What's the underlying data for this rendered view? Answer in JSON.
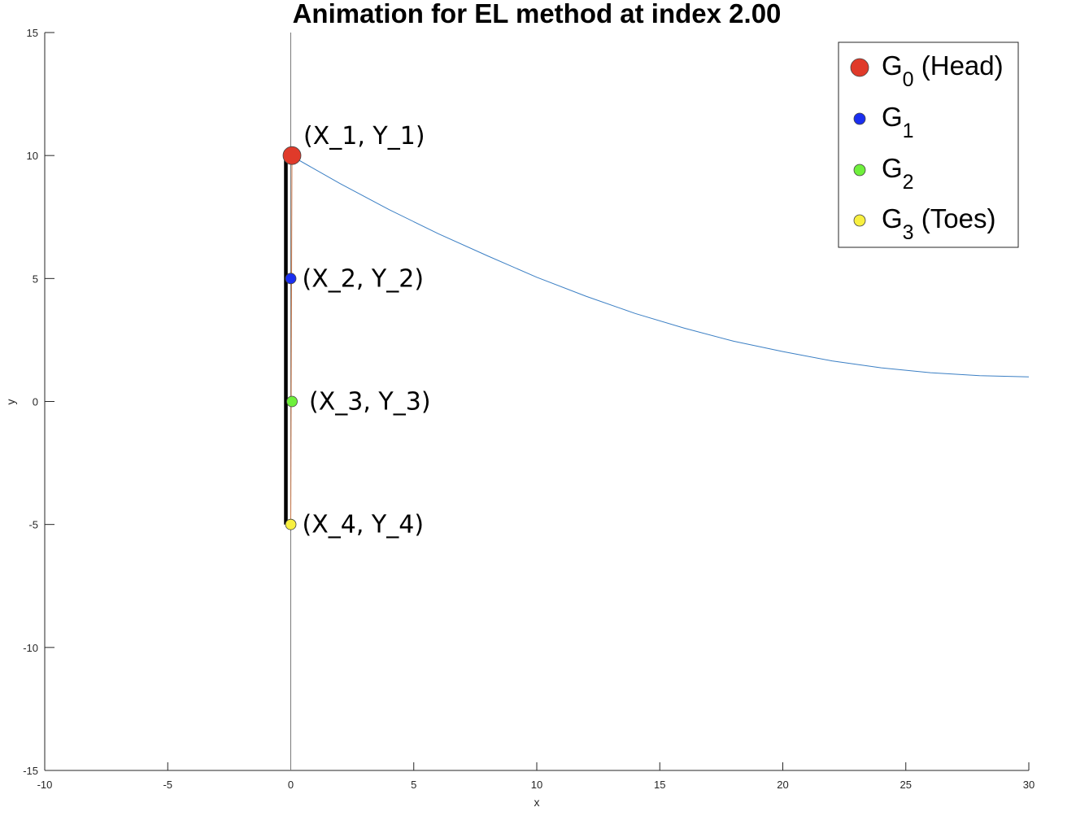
{
  "chart_data": {
    "type": "line",
    "title": "Animation for EL method at index 2.00",
    "xlabel": "x",
    "ylabel": "y",
    "xlim": [
      -10,
      30
    ],
    "ylim": [
      -15,
      15
    ],
    "xticks": [
      -10,
      -5,
      0,
      5,
      10,
      15,
      20,
      25,
      30
    ],
    "yticks": [
      -15,
      -10,
      -5,
      0,
      5,
      10,
      15
    ],
    "vertical_reference_line_x": 0,
    "trajectory": {
      "color": "#3b7fc4",
      "x": [
        0,
        2,
        4,
        6,
        8,
        10,
        12,
        14,
        16,
        18,
        20,
        22,
        24,
        26,
        28,
        30
      ],
      "y": [
        10,
        8.86,
        7.8,
        6.82,
        5.92,
        5.05,
        4.28,
        3.58,
        2.98,
        2.45,
        2.03,
        1.65,
        1.37,
        1.17,
        1.05,
        1.0
      ]
    },
    "rod": {
      "color": "#000000",
      "x": [
        -0.2,
        -0.2,
        -0.2
      ],
      "y": [
        10.2,
        5.2,
        -5.0
      ]
    },
    "points": [
      {
        "x": 0.05,
        "y": 10,
        "color": "#e03a2a",
        "label": "(X_1, Y_1)"
      },
      {
        "x": 0,
        "y": 5,
        "color": "#1a2ef0",
        "label": "(X_2, Y_2)"
      },
      {
        "x": 0.05,
        "y": 0,
        "color": "#6ff03c",
        "label": "(X_3, Y_3)"
      },
      {
        "x": 0,
        "y": -5,
        "color": "#f8f040",
        "label": "(X_4, Y_4)"
      }
    ],
    "legend": {
      "placement": "top-right",
      "entries": [
        {
          "base": "G",
          "sub": "0",
          "suffix": " (Head)",
          "color": "#e03a2a",
          "size": "large"
        },
        {
          "base": "G",
          "sub": "1",
          "suffix": "",
          "color": "#1a2ef0",
          "size": "small"
        },
        {
          "base": "G",
          "sub": "2",
          "suffix": "",
          "color": "#6ff03c",
          "size": "small"
        },
        {
          "base": "G",
          "sub": "3",
          "suffix": " (Toes)",
          "color": "#f8f040",
          "size": "small"
        }
      ]
    }
  }
}
